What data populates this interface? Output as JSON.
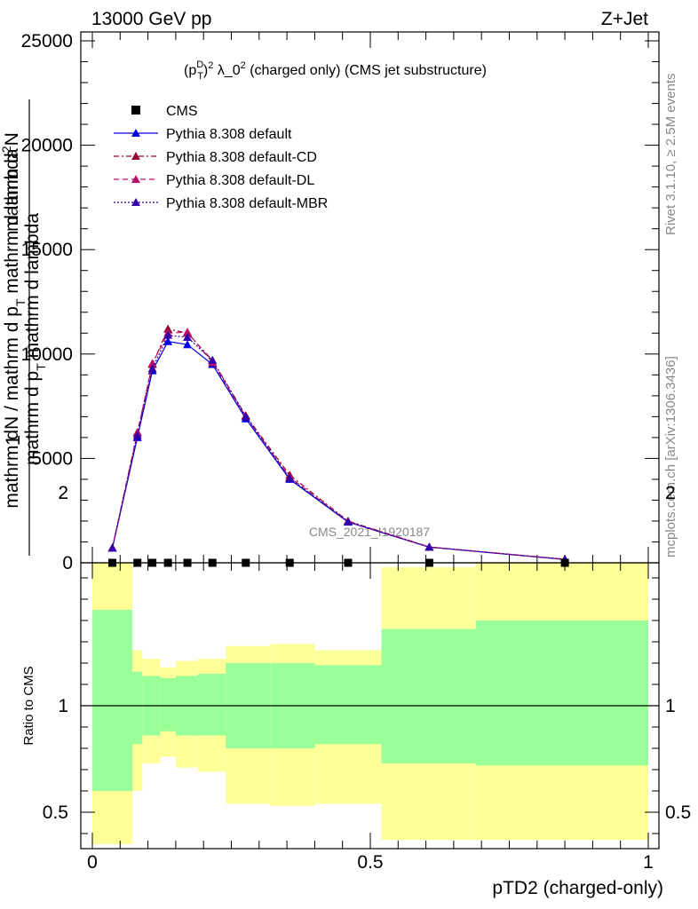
{
  "header": {
    "left": "13000 GeV pp",
    "right": "Z+Jet"
  },
  "side_labels": {
    "rivet": "Rivet 3.1.10, ≥ 2.5M events",
    "mcplots": "mcplots.cern.ch [arXiv:1306.3436]"
  },
  "chart_data": [
    {
      "type": "line",
      "title_parts": {
        "open": "(p",
        "sup_d": "D",
        "sub_t": "T",
        "close": ")",
        "exp2": "2",
        "lambda": " λ_0",
        "exp2b": "2",
        "rest": " (charged only) (CMS jet substructure)"
      },
      "ylabel_lines": [
        "1",
        "mathrm dN / mathrm d p_T mathrm d lambda",
        "mathrm d²N"
      ],
      "ylabel_frag": {
        "num1": "mathrm dN",
        "den1": "mathrm dN / mathrm d p",
        "den1_sub": "T",
        "den1_rest": " mathrm d lambda",
        "num2": "mathrm d",
        "num2_sup": "2",
        "num2_rest": "N",
        "den2": "mathrm d p",
        "den2_sub": "T",
        "den2_rest": " mathrm d lambda"
      },
      "watermark": "CMS_2021_I1920187",
      "xlim": [
        0,
        1
      ],
      "ylim": [
        0,
        25000
      ],
      "yticks": [
        0,
        5000,
        10000,
        15000,
        20000,
        25000
      ],
      "ytick_labels": [
        "0",
        "5000",
        "10000",
        "15000",
        "20000",
        "25000"
      ],
      "legend_position": "top-left",
      "legend": [
        "CMS",
        "Pythia 8.308 default",
        "Pythia 8.308 default-CD",
        "Pythia 8.308 default-DL",
        "Pythia 8.308 default-MBR"
      ],
      "data_markers_x": [
        0.036,
        0.081,
        0.108,
        0.136,
        0.171,
        0.216,
        0.276,
        0.355,
        0.46,
        0.606,
        0.85
      ],
      "series": [
        {
          "name": "Pythia 8.308 default",
          "color": "#0000dd",
          "dash": "",
          "marker": "triangle",
          "x": [
            0.036,
            0.081,
            0.108,
            0.136,
            0.171,
            0.216,
            0.276,
            0.355,
            0.46,
            0.606,
            0.85
          ],
          "y": [
            700,
            6000,
            9200,
            10600,
            10450,
            9500,
            6900,
            4000,
            1950,
            750,
            160
          ]
        },
        {
          "name": "Pythia 8.308 default-CD",
          "color": "#990033",
          "dash": "6,3,2,3",
          "marker": "triangle",
          "x": [
            0.036,
            0.081,
            0.108,
            0.136,
            0.171,
            0.216,
            0.276,
            0.355,
            0.46,
            0.606,
            0.85
          ],
          "y": [
            720,
            6250,
            9500,
            11200,
            11000,
            9700,
            7050,
            4200,
            2000,
            760,
            170
          ]
        },
        {
          "name": "Pythia 8.308 default-DL",
          "color": "#bb1166",
          "dash": "6,4",
          "marker": "triangle",
          "x": [
            0.036,
            0.081,
            0.108,
            0.136,
            0.171,
            0.216,
            0.276,
            0.355,
            0.46,
            0.606,
            0.85
          ],
          "y": [
            720,
            6200,
            9550,
            11000,
            11050,
            9600,
            7000,
            4100,
            1980,
            755,
            165
          ]
        },
        {
          "name": "Pythia 8.308 default-MBR",
          "color": "#3300aa",
          "dash": "2,2",
          "marker": "triangle",
          "x": [
            0.036,
            0.081,
            0.108,
            0.136,
            0.171,
            0.216,
            0.276,
            0.355,
            0.46,
            0.606,
            0.85
          ],
          "y": [
            710,
            6100,
            9300,
            10900,
            10800,
            9700,
            7000,
            4050,
            1970,
            752,
            163
          ]
        }
      ]
    },
    {
      "type": "area",
      "ylabel": "Ratio to CMS",
      "xlabel": "pTD2 (charged-only)",
      "xlim": [
        0,
        1
      ],
      "ylim": [
        0.35,
        2.25
      ],
      "xticks": [
        0,
        0.5,
        1
      ],
      "xtick_labels": [
        "0",
        "0.5",
        "1"
      ],
      "yticks": [
        0.5,
        1,
        2
      ],
      "ytick_labels": [
        "0.5",
        "1",
        "2"
      ],
      "band_colors": {
        "inner": "#99ff99",
        "outer": "#ffff99"
      },
      "bins": [
        {
          "x0": 0.0,
          "x1": 0.072,
          "in_lo": 0.6,
          "in_hi": 1.45,
          "out_lo": 0.35,
          "out_hi": 1.88
        },
        {
          "x0": 0.072,
          "x1": 0.09,
          "in_lo": 0.82,
          "in_hi": 1.16,
          "out_lo": 0.6,
          "out_hi": 1.26
        },
        {
          "x0": 0.09,
          "x1": 0.122,
          "in_lo": 0.86,
          "in_hi": 1.14,
          "out_lo": 0.73,
          "out_hi": 1.22
        },
        {
          "x0": 0.122,
          "x1": 0.15,
          "in_lo": 0.88,
          "in_hi": 1.13,
          "out_lo": 0.76,
          "out_hi": 1.18
        },
        {
          "x0": 0.15,
          "x1": 0.19,
          "in_lo": 0.86,
          "in_hi": 1.14,
          "out_lo": 0.71,
          "out_hi": 1.21
        },
        {
          "x0": 0.19,
          "x1": 0.24,
          "in_lo": 0.86,
          "in_hi": 1.15,
          "out_lo": 0.69,
          "out_hi": 1.22
        },
        {
          "x0": 0.24,
          "x1": 0.32,
          "in_lo": 0.8,
          "in_hi": 1.2,
          "out_lo": 0.54,
          "out_hi": 1.28
        },
        {
          "x0": 0.32,
          "x1": 0.4,
          "in_lo": 0.8,
          "in_hi": 1.2,
          "out_lo": 0.53,
          "out_hi": 1.29
        },
        {
          "x0": 0.4,
          "x1": 0.52,
          "in_lo": 0.82,
          "in_hi": 1.19,
          "out_lo": 0.54,
          "out_hi": 1.26
        },
        {
          "x0": 0.52,
          "x1": 0.69,
          "in_lo": 0.73,
          "in_hi": 1.36,
          "out_lo": 0.37,
          "out_hi": 1.65
        },
        {
          "x0": 0.69,
          "x1": 1.0,
          "in_lo": 0.72,
          "in_hi": 1.4,
          "out_lo": 0.37,
          "out_hi": 1.72
        }
      ],
      "ref_line": 1
    }
  ]
}
